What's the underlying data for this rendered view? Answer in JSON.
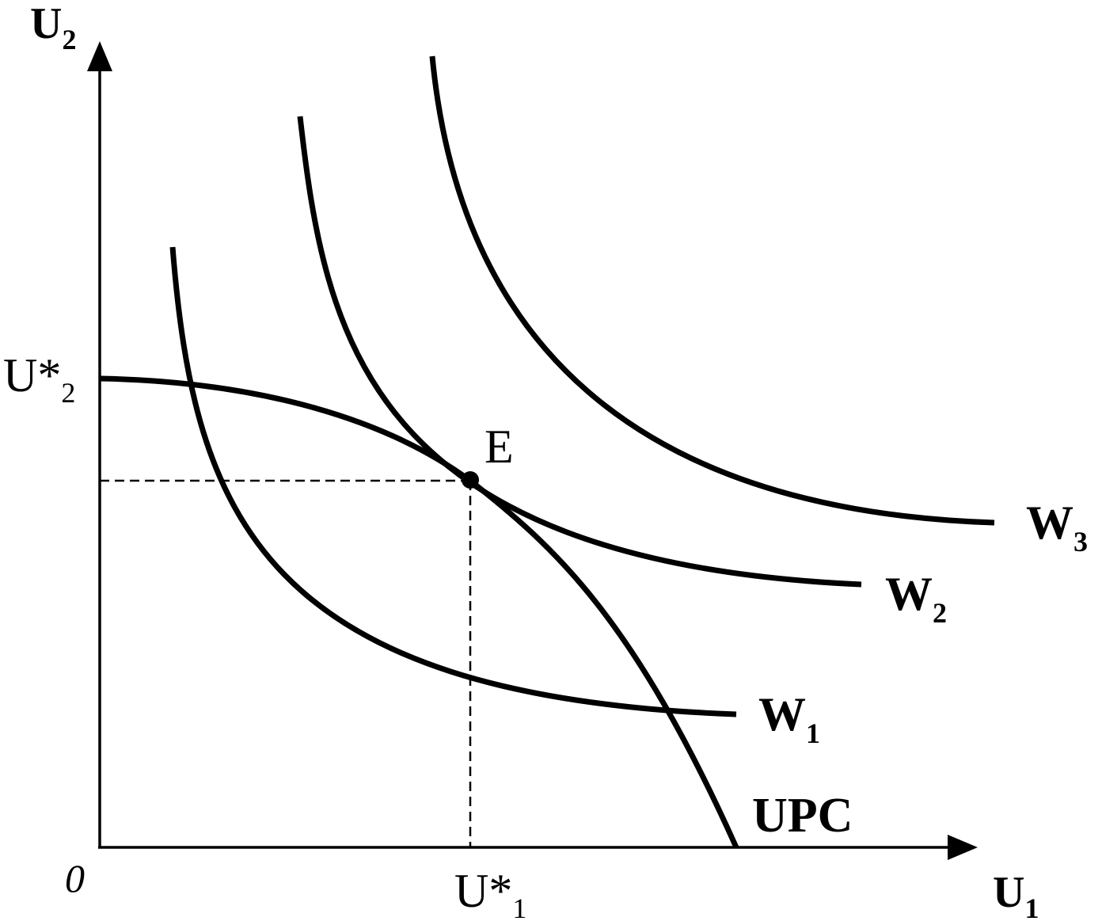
{
  "axes": {
    "y_label": "U",
    "y_sub": "2",
    "x_label": "U",
    "x_sub": "1",
    "origin": "0"
  },
  "ticks": {
    "y_star_main": "U*",
    "y_star_sub": "2",
    "x_star_main": "U*",
    "x_star_sub": "1"
  },
  "point": {
    "label": "E"
  },
  "curves": {
    "w1_main": "W",
    "w1_sub": "1",
    "w2_main": "W",
    "w2_sub": "2",
    "w3_main": "W",
    "w3_sub": "3",
    "upc": "UPC"
  },
  "colors": {
    "ink": "#000000",
    "background": "#ffffff"
  }
}
